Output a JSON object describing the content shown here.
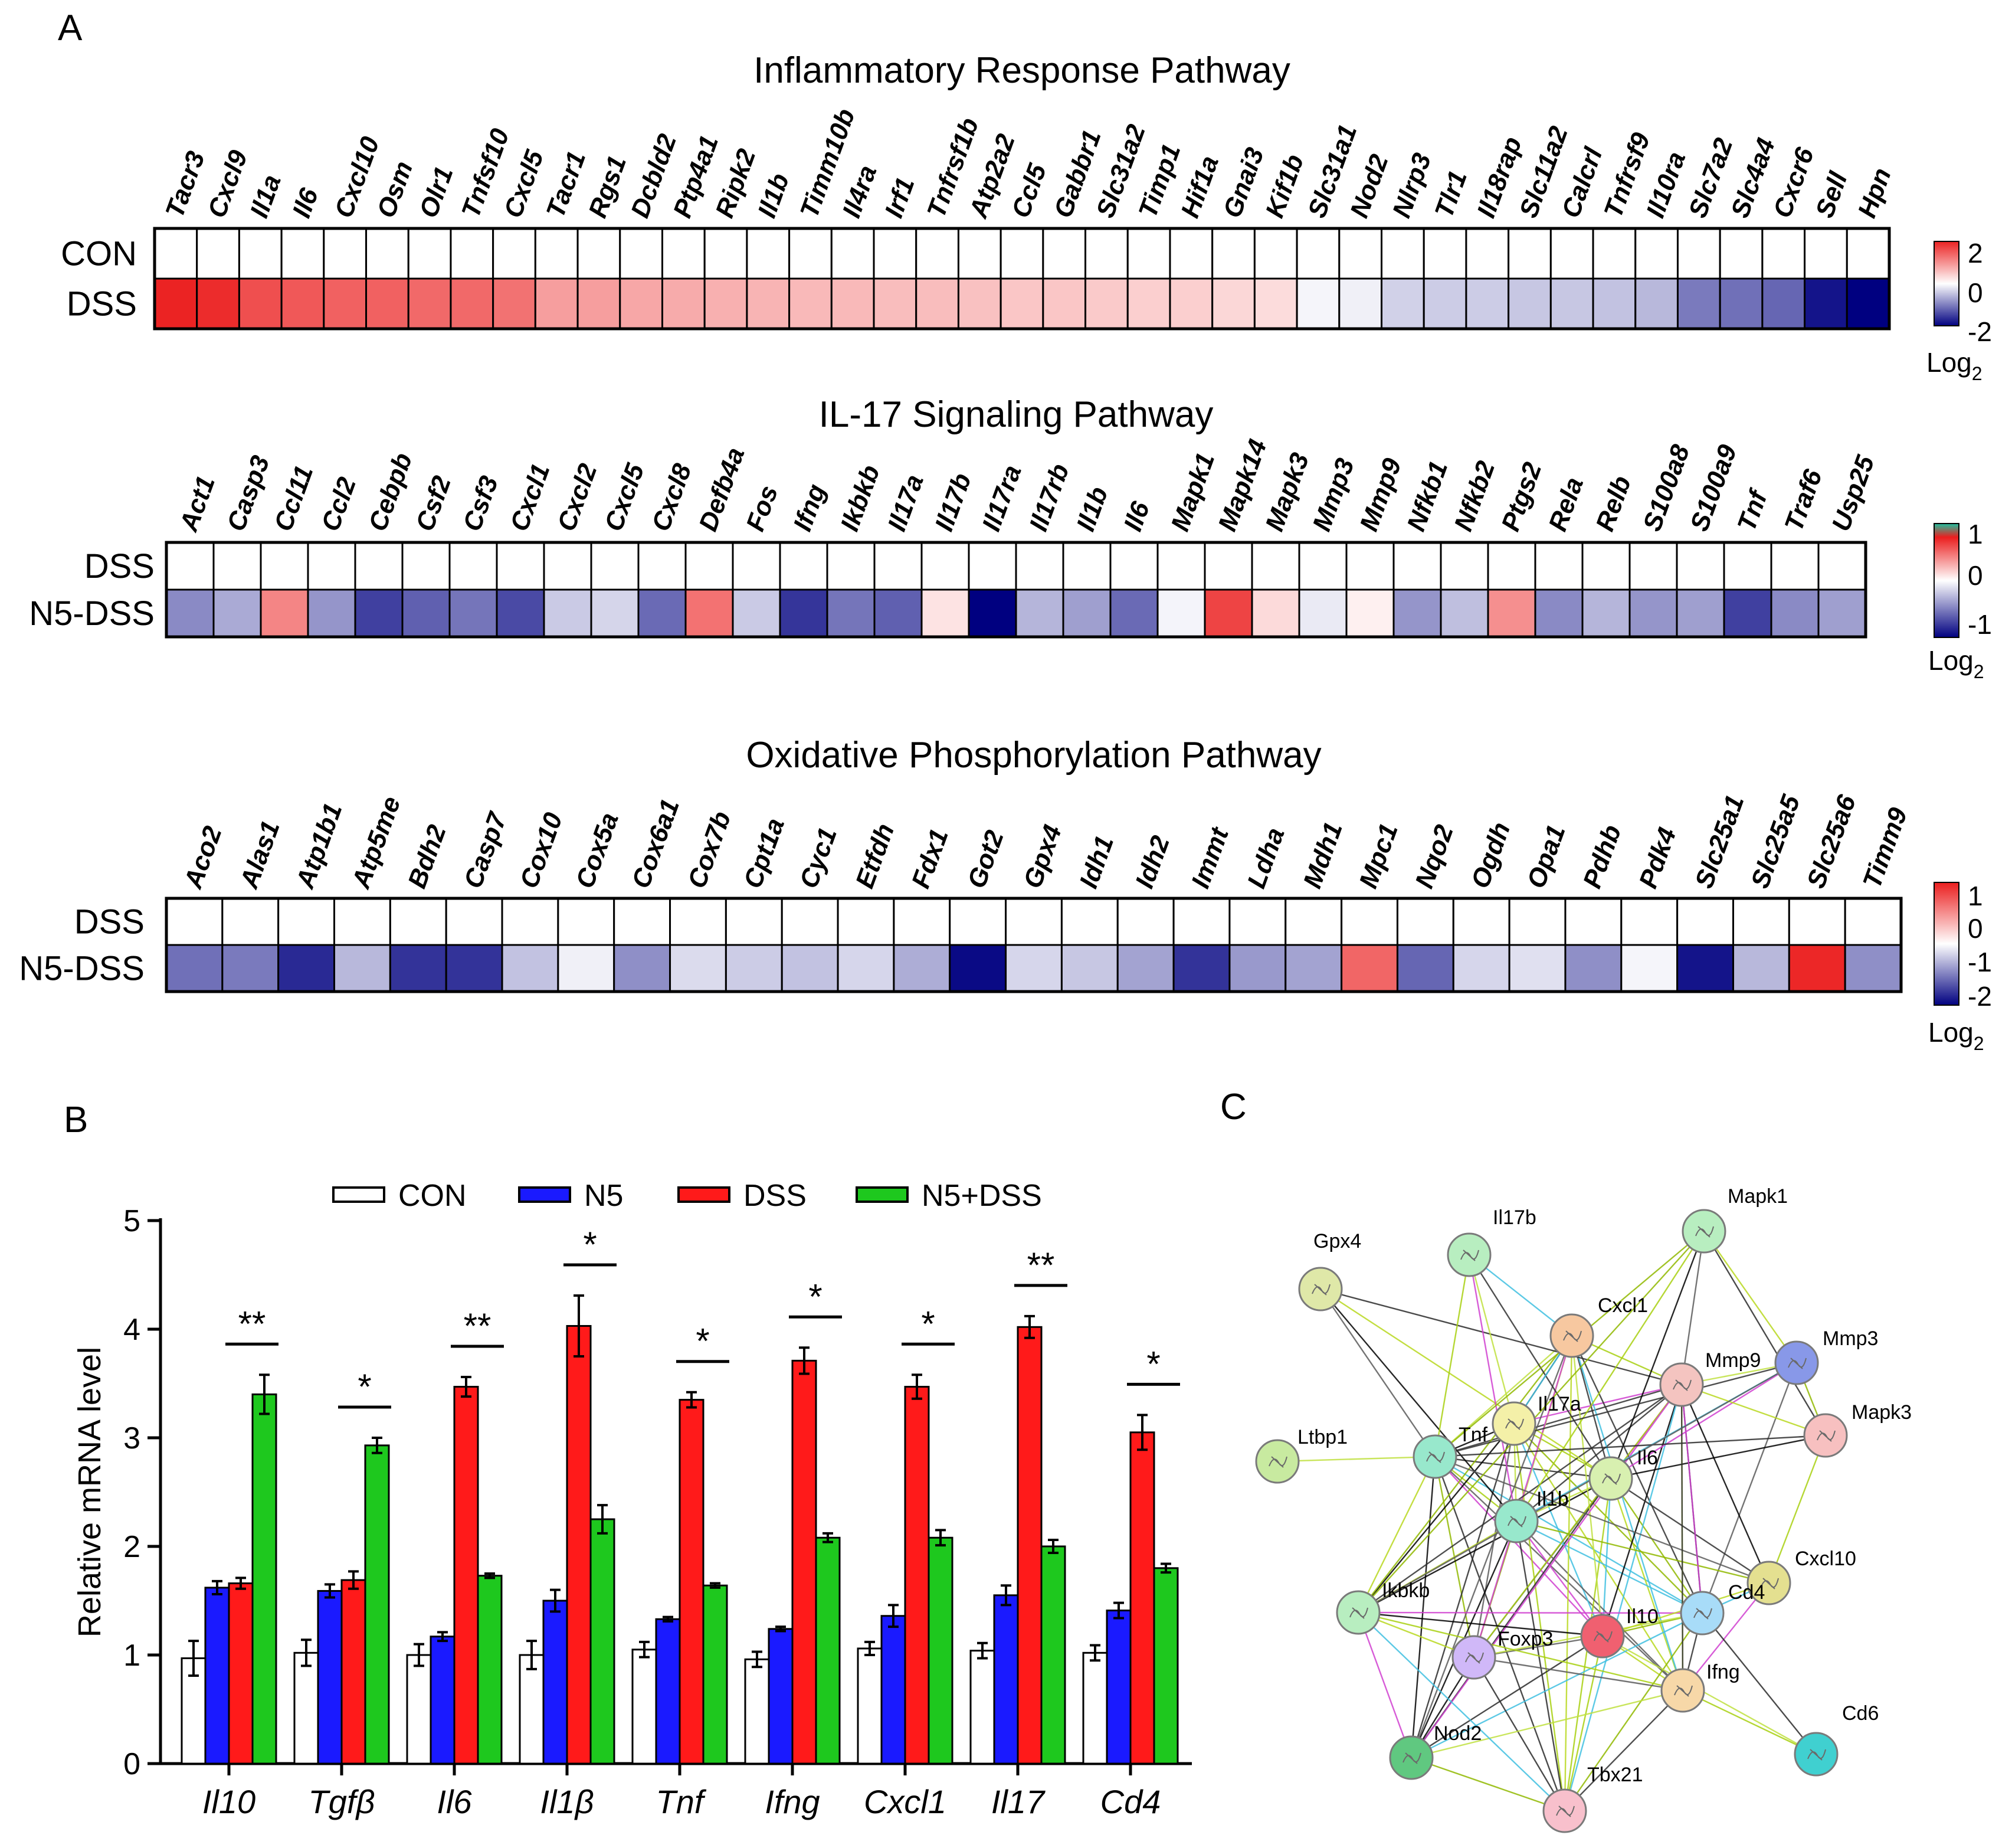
{
  "panel_labels": {
    "a": "A",
    "b": "B",
    "c": "C"
  },
  "chart_data": [
    {
      "type": "heatmap",
      "title": "Inflammatory  Response Pathway",
      "rows": [
        "CON",
        "DSS"
      ],
      "columns": [
        "Tacr3",
        "Cxcl9",
        "Il1a",
        "Il6",
        "Cxcl10",
        "Osm",
        "Olr1",
        "Tnfsf10",
        "Cxcl5",
        "Tacr1",
        "Rgs1",
        "Dcbld2",
        "Ptp4a1",
        "Ripk2",
        "Il1b",
        "Timm10b",
        "Il4ra",
        "Irf1",
        "Tnfrsf1b",
        "Atp2a2",
        "Ccl5",
        "Gabbr1",
        "Slc31a2",
        "Timp1",
        "Hif1a",
        "Gnai3",
        "Kif1b",
        "Slc31a1",
        "Nod2",
        "Nlrp3",
        "Tlr1",
        "Il18rap",
        "Slc11a2",
        "Calcrl",
        "Tnfrsf9",
        "Il10ra",
        "Slc7a2",
        "Slc4a4",
        "Cxcr6",
        "Sell",
        "Hpn"
      ],
      "values": [
        [
          0,
          0,
          0,
          0,
          0,
          0,
          0,
          0,
          0,
          0,
          0,
          0,
          0,
          0,
          0,
          0,
          0,
          0,
          0,
          0,
          0,
          0,
          0,
          0,
          0,
          0,
          0,
          0,
          0,
          0,
          0,
          0,
          0,
          0,
          0,
          0,
          0,
          0,
          0,
          0,
          0
        ],
        [
          2.5,
          2.4,
          2.0,
          1.9,
          1.8,
          1.8,
          1.7,
          1.7,
          1.6,
          1.1,
          1.1,
          1.0,
          0.95,
          0.9,
          0.85,
          0.8,
          0.8,
          0.75,
          0.75,
          0.7,
          0.65,
          0.65,
          0.6,
          0.55,
          0.55,
          0.45,
          0.4,
          -0.1,
          -0.15,
          -0.45,
          -0.5,
          -0.5,
          -0.55,
          -0.55,
          -0.6,
          -0.7,
          -1.3,
          -1.4,
          -1.5,
          -2.3,
          -2.5
        ]
      ],
      "colorbar": {
        "ticks": [
          "2",
          "0",
          "-2"
        ],
        "range": [
          -2.5,
          2.5
        ],
        "label": "Log",
        "label_sub": "2"
      }
    },
    {
      "type": "heatmap",
      "title": "IL-17 Signaling Pathway",
      "rows": [
        "DSS",
        "N5-DSS"
      ],
      "columns": [
        "Act1",
        "Casp3",
        "Ccl11",
        "Ccl2",
        "Cebpb",
        "Csf2",
        "Csf3",
        "Cxcl1",
        "Cxcl2",
        "Cxcl5",
        "Cxcl8",
        "Defb4a",
        "Fos",
        "Ifng",
        "Ikbkb",
        "Il17a",
        "Il17b",
        "Il17ra",
        "Il17rb",
        "Il1b",
        "Il6",
        "Mapk1",
        "Mapk14",
        "Mapk3",
        "Mmp3",
        "Mmp9",
        "Nfkb1",
        "Nfkb2",
        "Ptgs2",
        "Rela",
        "Relb",
        "S100a8",
        "S100a9",
        "Tnf",
        "Traf6",
        "Usp25"
      ],
      "values": [
        [
          0,
          0,
          0,
          0,
          0,
          0,
          0,
          0,
          0,
          0,
          0,
          0,
          0,
          0,
          0,
          0,
          0,
          0,
          0,
          0,
          0,
          0,
          0,
          0,
          0,
          0,
          0,
          0,
          0,
          0,
          0,
          0,
          0,
          0,
          0,
          0
        ],
        [
          -0.55,
          -0.4,
          0.65,
          -0.5,
          -0.9,
          -0.75,
          -0.65,
          -0.85,
          -0.25,
          -0.2,
          -0.7,
          0.75,
          -0.25,
          -0.95,
          -0.65,
          -0.75,
          0.15,
          -1.3,
          -0.35,
          -0.45,
          -0.7,
          -0.05,
          1.0,
          0.2,
          -0.1,
          0.08,
          -0.5,
          -0.3,
          0.6,
          -0.55,
          -0.35,
          -0.5,
          -0.45,
          -0.9,
          -0.55,
          -0.45
        ]
      ],
      "colorbar": {
        "ticks": [
          "1",
          "0",
          "-1"
        ],
        "range": [
          -1.2,
          1.2
        ],
        "label": "Log",
        "label_sub": "2"
      }
    },
    {
      "type": "heatmap",
      "title": "Oxidative Phosphorylation Pathway",
      "rows": [
        "DSS",
        "N5-DSS"
      ],
      "columns": [
        "Aco2",
        "Alas1",
        "Atp1b1",
        "Atp5me",
        "Bdh2",
        "Casp7",
        "Cox10",
        "Cox5a",
        "Cox6a1",
        "Cox7b",
        "Cpt1a",
        "Cyc1",
        "Etfdh",
        "Fdx1",
        "Got2",
        "Gpx4",
        "Idh1",
        "Idh2",
        "Immt",
        "Ldha",
        "Mdh1",
        "Mpc1",
        "Nqo2",
        "Ogdh",
        "Opa1",
        "Pdhb",
        "Pdk4",
        "Slc25a1",
        "Slc25a5",
        "Slc25a6",
        "Timm9"
      ],
      "values": [
        [
          0,
          0,
          0,
          0,
          0,
          0,
          0,
          0,
          0,
          0,
          0,
          0,
          0,
          0,
          0,
          0,
          0,
          0,
          0,
          0,
          0,
          0,
          0,
          0,
          0,
          0,
          0,
          0,
          0,
          0,
          0
        ],
        [
          -1.4,
          -1.3,
          -2.1,
          -0.7,
          -2.0,
          -2.0,
          -0.6,
          -0.15,
          -1.1,
          -0.35,
          -0.5,
          -0.6,
          -0.4,
          -0.8,
          -2.4,
          -0.4,
          -0.55,
          -0.9,
          -2.0,
          -1.0,
          -0.9,
          1.7,
          -1.5,
          -0.4,
          -0.3,
          -1.1,
          -0.1,
          -2.3,
          -0.7,
          2.4,
          -1.1
        ]
      ],
      "colorbar": {
        "ticks": [
          "1",
          "0",
          "-1",
          "-2"
        ],
        "range": [
          -2.5,
          2.5
        ],
        "label": "Log",
        "label_sub": "2"
      }
    },
    {
      "type": "bar",
      "ylabel": "Relative mRNA level",
      "ylim": [
        0,
        5
      ],
      "yticks": [
        "0",
        "1",
        "2",
        "3",
        "4",
        "5"
      ],
      "categories": [
        "Il10",
        "Tgfβ",
        "Il6",
        "Il1β",
        "Tnf",
        "Ifng",
        "Cxcl1",
        "Il17",
        "Cd4"
      ],
      "series": [
        {
          "name": "CON",
          "color": "#ffffff",
          "values": [
            0.97,
            1.02,
            1.0,
            1.0,
            1.05,
            0.96,
            1.06,
            1.04,
            1.02
          ],
          "errors": [
            0.16,
            0.12,
            0.1,
            0.13,
            0.07,
            0.07,
            0.06,
            0.07,
            0.07
          ]
        },
        {
          "name": "N5",
          "color": "#1a1aff",
          "values": [
            1.62,
            1.59,
            1.17,
            1.5,
            1.33,
            1.24,
            1.36,
            1.55,
            1.41
          ],
          "errors": [
            0.06,
            0.06,
            0.04,
            0.1,
            0.02,
            0.02,
            0.1,
            0.09,
            0.07
          ]
        },
        {
          "name": "DSS",
          "color": "#ff1a1a",
          "values": [
            1.66,
            1.69,
            3.47,
            4.03,
            3.35,
            3.71,
            3.47,
            4.02,
            3.05
          ],
          "errors": [
            0.05,
            0.08,
            0.09,
            0.28,
            0.07,
            0.12,
            0.11,
            0.1,
            0.16
          ]
        },
        {
          "name": "N5+DSS",
          "color": "#1ec81e",
          "values": [
            3.4,
            2.93,
            1.73,
            2.25,
            1.64,
            2.08,
            2.08,
            2.0,
            1.8
          ],
          "errors": [
            0.18,
            0.07,
            0.02,
            0.13,
            0.02,
            0.04,
            0.07,
            0.06,
            0.04
          ]
        }
      ],
      "significance": [
        "**",
        "*",
        "**",
        "*",
        "*",
        "*",
        "*",
        "**",
        "*"
      ]
    },
    {
      "type": "network",
      "nodes": [
        {
          "name": "Gpx4",
          "color": "#dfe8a8"
        },
        {
          "name": "Il17b",
          "color": "#b8eec0"
        },
        {
          "name": "Mapk1",
          "color": "#b8eec0"
        },
        {
          "name": "Cxcl1",
          "color": "#f7c8a0"
        },
        {
          "name": "Mmp3",
          "color": "#8898e8"
        },
        {
          "name": "Mmp9",
          "color": "#f4c4c0"
        },
        {
          "name": "Mapk3",
          "color": "#f7c0c0"
        },
        {
          "name": "Ltbp1",
          "color": "#c8eaa0"
        },
        {
          "name": "Tnf",
          "color": "#98e8cc"
        },
        {
          "name": "Il17a",
          "color": "#f4f0a8"
        },
        {
          "name": "Il6",
          "color": "#d8f0b0"
        },
        {
          "name": "Il1b",
          "color": "#98e8cc"
        },
        {
          "name": "Cxcl10",
          "color": "#e4e090"
        },
        {
          "name": "Ikbkb",
          "color": "#b8eec0"
        },
        {
          "name": "Cd4",
          "color": "#a8dcf8"
        },
        {
          "name": "Il10",
          "color": "#f06070"
        },
        {
          "name": "Foxp3",
          "color": "#d0b8f8"
        },
        {
          "name": "Ifng",
          "color": "#f7d8a8"
        },
        {
          "name": "Nod2",
          "color": "#60c880"
        },
        {
          "name": "Cd6",
          "color": "#40d0d0"
        },
        {
          "name": "Tbx21",
          "color": "#f8c0cc"
        }
      ]
    }
  ]
}
